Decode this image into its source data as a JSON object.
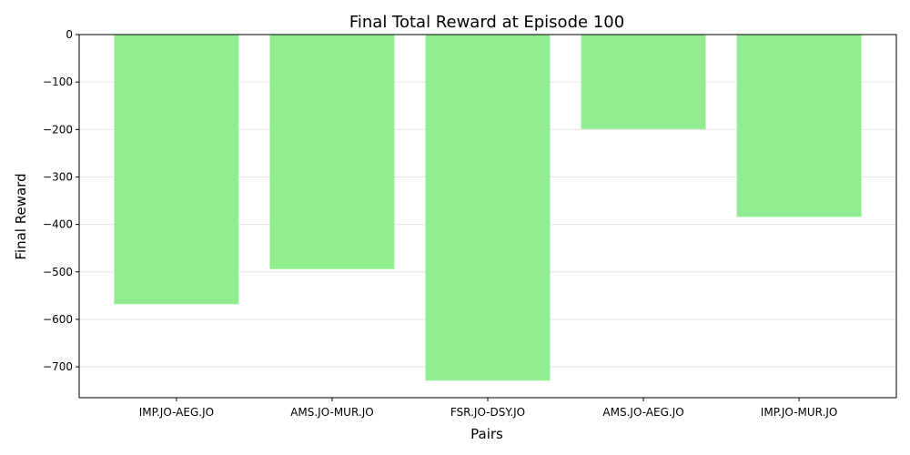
{
  "chart_data": {
    "type": "bar",
    "title": "Final Total Reward at Episode 100",
    "xlabel": "Pairs",
    "ylabel": "Final Reward",
    "categories": [
      "IMP.JO-AEG.JO",
      "AMS.JO-MUR.JO",
      "FSR.JO-DSY.JO",
      "AMS.JO-AEG.JO",
      "IMP.JO-MUR.JO"
    ],
    "values": [
      -568,
      -494,
      -729,
      -199,
      -384
    ],
    "ylim": [
      -765,
      0
    ],
    "yticks": [
      0,
      -100,
      -200,
      -300,
      -400,
      -500,
      -600,
      -700
    ],
    "ytick_labels": [
      "0",
      "−100",
      "−200",
      "−300",
      "−400",
      "−500",
      "−600",
      "−700"
    ],
    "grid": "y",
    "bar_color": "#90ee90"
  }
}
